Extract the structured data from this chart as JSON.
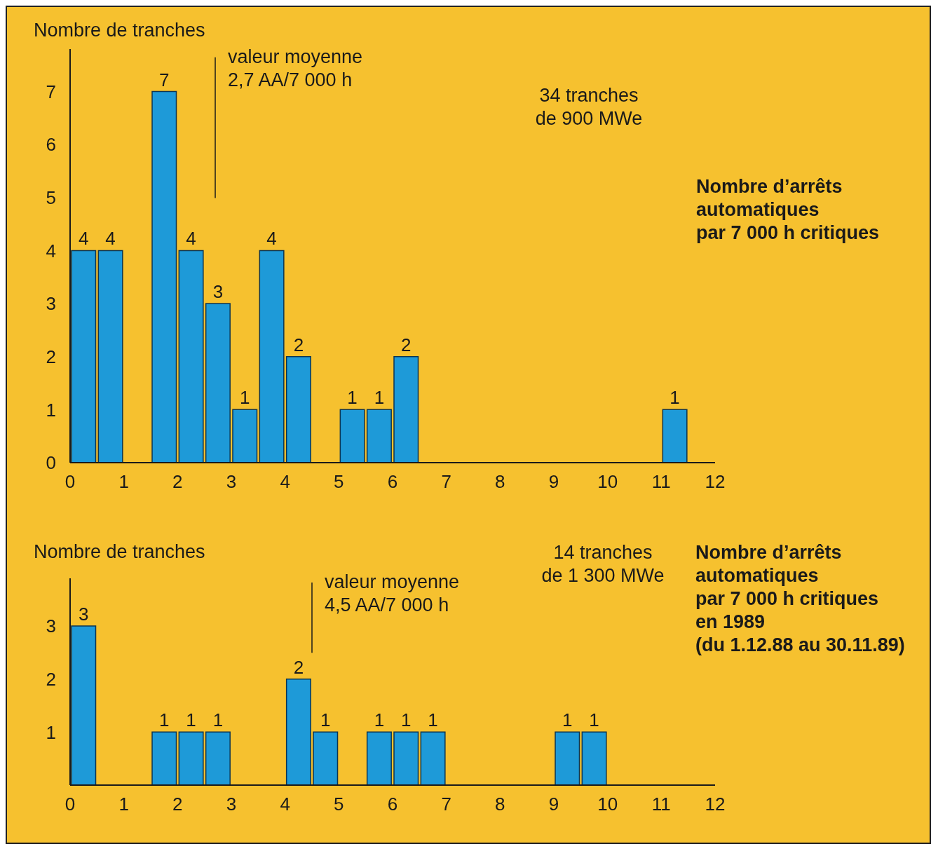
{
  "chart_data": [
    {
      "type": "histogram",
      "ylabel": "Nombre de tranches",
      "color": "#1e9ad8",
      "bins": [
        0,
        0.5,
        1,
        1.5,
        2,
        2.5,
        3,
        3.5,
        4,
        4.5,
        5,
        5.5,
        6,
        6.5,
        7,
        7.5,
        8,
        8.5,
        9,
        9.5,
        10,
        10.5,
        11,
        11.5,
        12
      ],
      "values": [
        4,
        4,
        0,
        7,
        4,
        3,
        1,
        4,
        2,
        0,
        1,
        1,
        2,
        0,
        0,
        0,
        0,
        0,
        0,
        0,
        0,
        0,
        1,
        0
      ],
      "value_labels": [
        "4",
        "4",
        null,
        "7",
        "4",
        "3",
        "1",
        "4",
        "2",
        null,
        "1",
        "1",
        "2",
        null,
        null,
        null,
        null,
        null,
        null,
        null,
        null,
        null,
        "1",
        null
      ],
      "xlim": [
        0,
        12
      ],
      "xticks": [
        0,
        1,
        2,
        3,
        4,
        5,
        6,
        7,
        8,
        9,
        10,
        11,
        12
      ],
      "ylim": [
        0,
        7.8
      ],
      "yticks": [
        0,
        1,
        2,
        3,
        4,
        5,
        6,
        7
      ],
      "ref_lines": [
        {
          "axis": "x",
          "value": 2.7,
          "label": "valeur moyenne\n2,7 AA/7 000 h",
          "color": "#1a1a1a"
        }
      ],
      "annotations": [
        "34 tranches\nde 900 MWe",
        "Nombre d’arrêts\nautomatiques\npar 7 000 h critiques"
      ]
    },
    {
      "type": "histogram",
      "ylabel": "Nombre de tranches",
      "color": "#1e9ad8",
      "bins": [
        0,
        0.5,
        1,
        1.5,
        2,
        2.5,
        3,
        3.5,
        4,
        4.5,
        5,
        5.5,
        6,
        6.5,
        7,
        7.5,
        8,
        8.5,
        9,
        9.5,
        10,
        10.5,
        11,
        11.5,
        12
      ],
      "values": [
        3,
        0,
        0,
        1,
        1,
        1,
        0,
        0,
        2,
        1,
        0,
        1,
        1,
        1,
        0,
        0,
        0,
        0,
        1,
        1,
        0,
        0,
        0,
        0
      ],
      "value_labels": [
        "3",
        null,
        null,
        "1",
        "1",
        "1",
        null,
        null,
        "2",
        "1",
        null,
        "1",
        "1",
        "1",
        null,
        null,
        null,
        null,
        "1",
        "1",
        null,
        null,
        null,
        null
      ],
      "xlim": [
        0,
        12
      ],
      "xticks": [
        0,
        1,
        2,
        3,
        4,
        5,
        6,
        7,
        8,
        9,
        10,
        11,
        12
      ],
      "ylim": [
        0,
        3.9
      ],
      "yticks": [
        1,
        2,
        3
      ],
      "ref_lines": [
        {
          "axis": "x",
          "value": 4.5,
          "label": "valeur moyenne\n4,5 AA/7 000 h",
          "color": "#1a1a1a"
        }
      ],
      "annotations": [
        "14 tranches\nde 1 300 MWe",
        "Nombre d’arrêts\nautomatiques\npar 7 000 h critiques\nen 1989\n(du 1.12.88 au 30.11.89)"
      ]
    }
  ]
}
